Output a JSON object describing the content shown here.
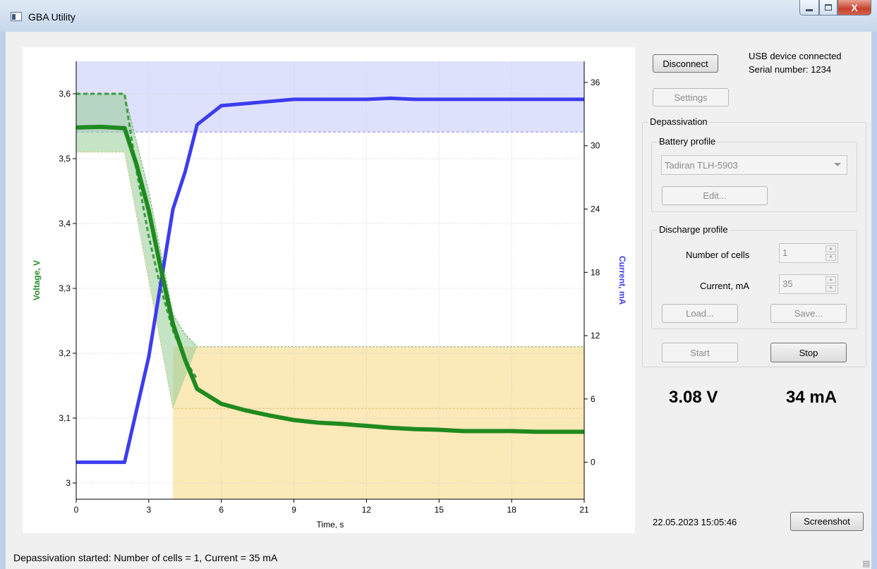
{
  "window": {
    "title": "GBA Utility",
    "close_glyph": "X",
    "min_icon": "minimize-icon",
    "max_icon": "maximize-icon",
    "app_icon": "app-window-icon"
  },
  "connection": {
    "disconnect_label": "Disconnect",
    "status_line1": "USB device connected",
    "status_line2": "Serial number: 1234"
  },
  "settings_label": "Settings",
  "depassivation": {
    "title": "Depassivation",
    "battery_profile": {
      "title": "Battery profile",
      "selected": "Tadiran TLH-5903",
      "edit_label": "Edit..."
    },
    "discharge_profile": {
      "title": "Discharge profile",
      "cells_label": "Number of cells",
      "cells_value": "1",
      "current_label": "Current, mA",
      "current_value": "35",
      "load_label": "Load...",
      "save_label": "Save..."
    },
    "start_label": "Start",
    "stop_label": "Stop"
  },
  "readings": {
    "voltage": "3.08 V",
    "current": "34 mA"
  },
  "datetime": "22.05.2023   15:05:46",
  "screenshot_label": "Screenshot",
  "status_bar": "Depassivation started: Number of cells = 1, Current = 35 mA",
  "colors": {
    "voltage": "#1f8a1f",
    "current": "#3c3cf0",
    "current_band": "#d8dcfa",
    "voltage_band": "#fbe9b8",
    "voltage_envelope": "#96cc96"
  },
  "chart_data": {
    "type": "line",
    "xlabel": "Time, s",
    "y_left_label": "Voltage, V",
    "y_right_label": "Current, mA",
    "xlim": [
      0,
      21
    ],
    "ylim_left": [
      2.975,
      3.65
    ],
    "ylim_right": [
      -3.5,
      38
    ],
    "x_ticks": [
      "0",
      "3",
      "6",
      "9",
      "12",
      "15",
      "18",
      "21"
    ],
    "y_left_ticks": [
      "3",
      "3,1",
      "3,2",
      "3,3",
      "3,4",
      "3,5",
      "3,6"
    ],
    "y_right_ticks": [
      "0",
      "6",
      "12",
      "18",
      "24",
      "30",
      "36"
    ],
    "grid": true,
    "series": [
      {
        "name": "Voltage, V",
        "axis": "left",
        "x": [
          0,
          1,
          2,
          2.5,
          3,
          3.5,
          4,
          4.5,
          5,
          6,
          7,
          8,
          9,
          10,
          11,
          12,
          13,
          14,
          15,
          16,
          17,
          18,
          19,
          20,
          21
        ],
        "y": [
          3.548,
          3.549,
          3.547,
          3.49,
          3.42,
          3.33,
          3.245,
          3.19,
          3.145,
          3.122,
          3.112,
          3.104,
          3.097,
          3.093,
          3.091,
          3.088,
          3.085,
          3.083,
          3.082,
          3.08,
          3.08,
          3.08,
          3.079,
          3.079,
          3.079
        ]
      },
      {
        "name": "Current, mA",
        "axis": "right",
        "x": [
          0,
          1,
          2,
          3,
          4,
          4.5,
          5,
          6,
          7,
          8,
          9,
          10,
          11,
          12,
          13,
          14,
          15,
          16,
          17,
          18,
          19,
          20,
          21
        ],
        "y": [
          0,
          0,
          0,
          10,
          24,
          27.5,
          32,
          33.8,
          34,
          34.2,
          34.4,
          34.4,
          34.4,
          34.4,
          34.5,
          34.4,
          34.4,
          34.4,
          34.4,
          34.4,
          34.4,
          34.4,
          34.4
        ]
      }
    ],
    "voltage_target": {
      "x": [
        0,
        2,
        3,
        4,
        4.5,
        5,
        21
      ],
      "y": [
        3.6,
        3.6,
        3.45,
        3.26,
        3.23,
        3.21,
        3.21
      ]
    },
    "voltage_lower": {
      "x": [
        0,
        2,
        4,
        21
      ],
      "y": [
        3.51,
        3.51,
        3.115,
        3.115
      ]
    },
    "voltage_dashed": {
      "x": [
        0,
        2,
        2.5,
        3,
        3.5,
        4,
        4.5,
        5
      ],
      "y": [
        3.6,
        3.6,
        3.48,
        3.38,
        3.3,
        3.235,
        3.19,
        3.16
      ]
    },
    "current_band": {
      "y_from": 31.3,
      "y_to": 38
    },
    "voltage_band": {
      "x_from": 4,
      "x_to": 21,
      "y_from": 2.975,
      "y_to": 3.21
    }
  }
}
